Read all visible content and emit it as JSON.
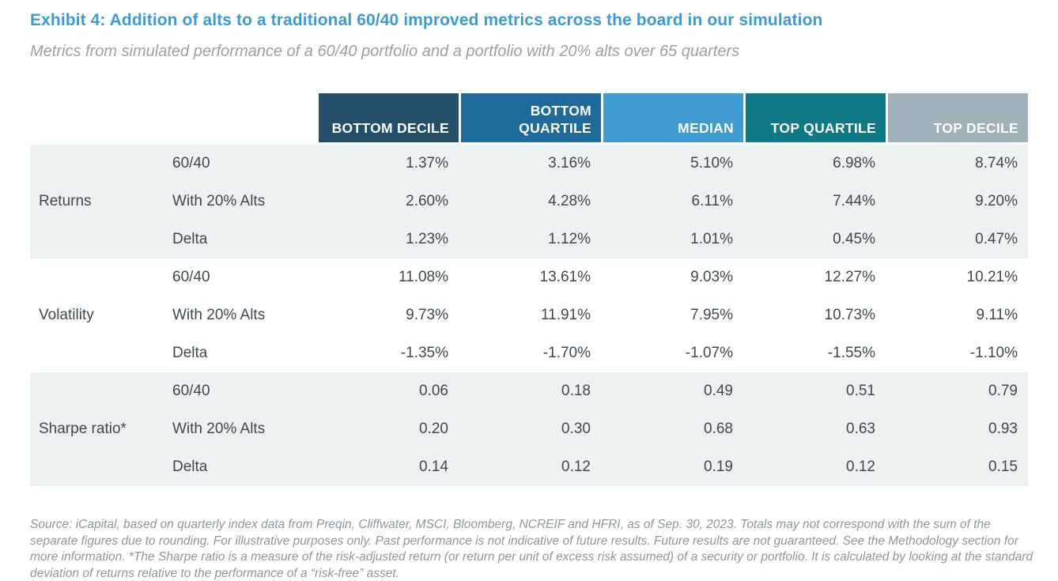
{
  "header": {
    "title": "Exhibit 4: Addition of alts to a traditional 60/40 improved metrics across the board in our simulation",
    "subtitle": "Metrics from simulated performance of a 60/40 portfolio and a portfolio with 20% alts over 65 quarters"
  },
  "colors": {
    "title_blue": "#3b9cd4",
    "body_text": "#3d4a52",
    "light_band": "#ecf1f2",
    "white_band": "#ffffff",
    "footnote_gray": "#8d979e"
  },
  "table": {
    "columns": [
      {
        "label": "BOTTOM DECILE",
        "color": "#244f6a"
      },
      {
        "label": "BOTTOM QUARTILE",
        "color": "#1f699b"
      },
      {
        "label": "MEDIAN",
        "color": "#409bd0"
      },
      {
        "label": "TOP QUARTILE",
        "color": "#0f7a85"
      },
      {
        "label": "TOP DECILE",
        "color": "#a1b1b9"
      }
    ],
    "groups": [
      {
        "label": "Returns",
        "background": "#ecf1f2",
        "rows": [
          {
            "label": "60/40",
            "values": [
              "1.37%",
              "3.16%",
              "5.10%",
              "6.98%",
              "8.74%"
            ]
          },
          {
            "label": "With 20% Alts",
            "values": [
              "2.60%",
              "4.28%",
              "6.11%",
              "7.44%",
              "9.20%"
            ]
          },
          {
            "label": "Delta",
            "values": [
              "1.23%",
              "1.12%",
              "1.01%",
              "0.45%",
              "0.47%"
            ]
          }
        ]
      },
      {
        "label": "Volatility",
        "background": "#ffffff",
        "rows": [
          {
            "label": "60/40",
            "values": [
              "11.08%",
              "13.61%",
              "9.03%",
              "12.27%",
              "10.21%"
            ]
          },
          {
            "label": "With 20% Alts",
            "values": [
              "9.73%",
              "11.91%",
              "7.95%",
              "10.73%",
              "9.11%"
            ]
          },
          {
            "label": "Delta",
            "values": [
              "-1.35%",
              "-1.70%",
              "-1.07%",
              "-1.55%",
              "-1.10%"
            ]
          }
        ]
      },
      {
        "label": "Sharpe ratio*",
        "background": "#ecf1f2",
        "rows": [
          {
            "label": "60/40",
            "values": [
              "0.06",
              "0.18",
              "0.49",
              "0.51",
              "0.79"
            ]
          },
          {
            "label": "With 20% Alts",
            "values": [
              "0.20",
              "0.30",
              "0.68",
              "0.63",
              "0.93"
            ]
          },
          {
            "label": "Delta",
            "values": [
              "0.14",
              "0.12",
              "0.19",
              "0.12",
              "0.15"
            ]
          }
        ]
      }
    ]
  },
  "footnote": "Source: iCapital, based on quarterly index data from Preqin, Cliffwater, MSCI, Bloomberg, NCREIF and HFRI, as of Sep.  30, 2023. Totals may not correspond with the sum of the separate figures due to rounding. For illustrative purposes only. Past performance is not indicative of future results. Future results are not guaranteed. See the Methodology section for more information. *The Sharpe ratio is a measure of the risk-adjusted return (or return per unit of excess risk assumed) of a security or portfolio. It is calculated by looking at the standard deviation of returns relative to the performance of a “risk-free” asset."
}
